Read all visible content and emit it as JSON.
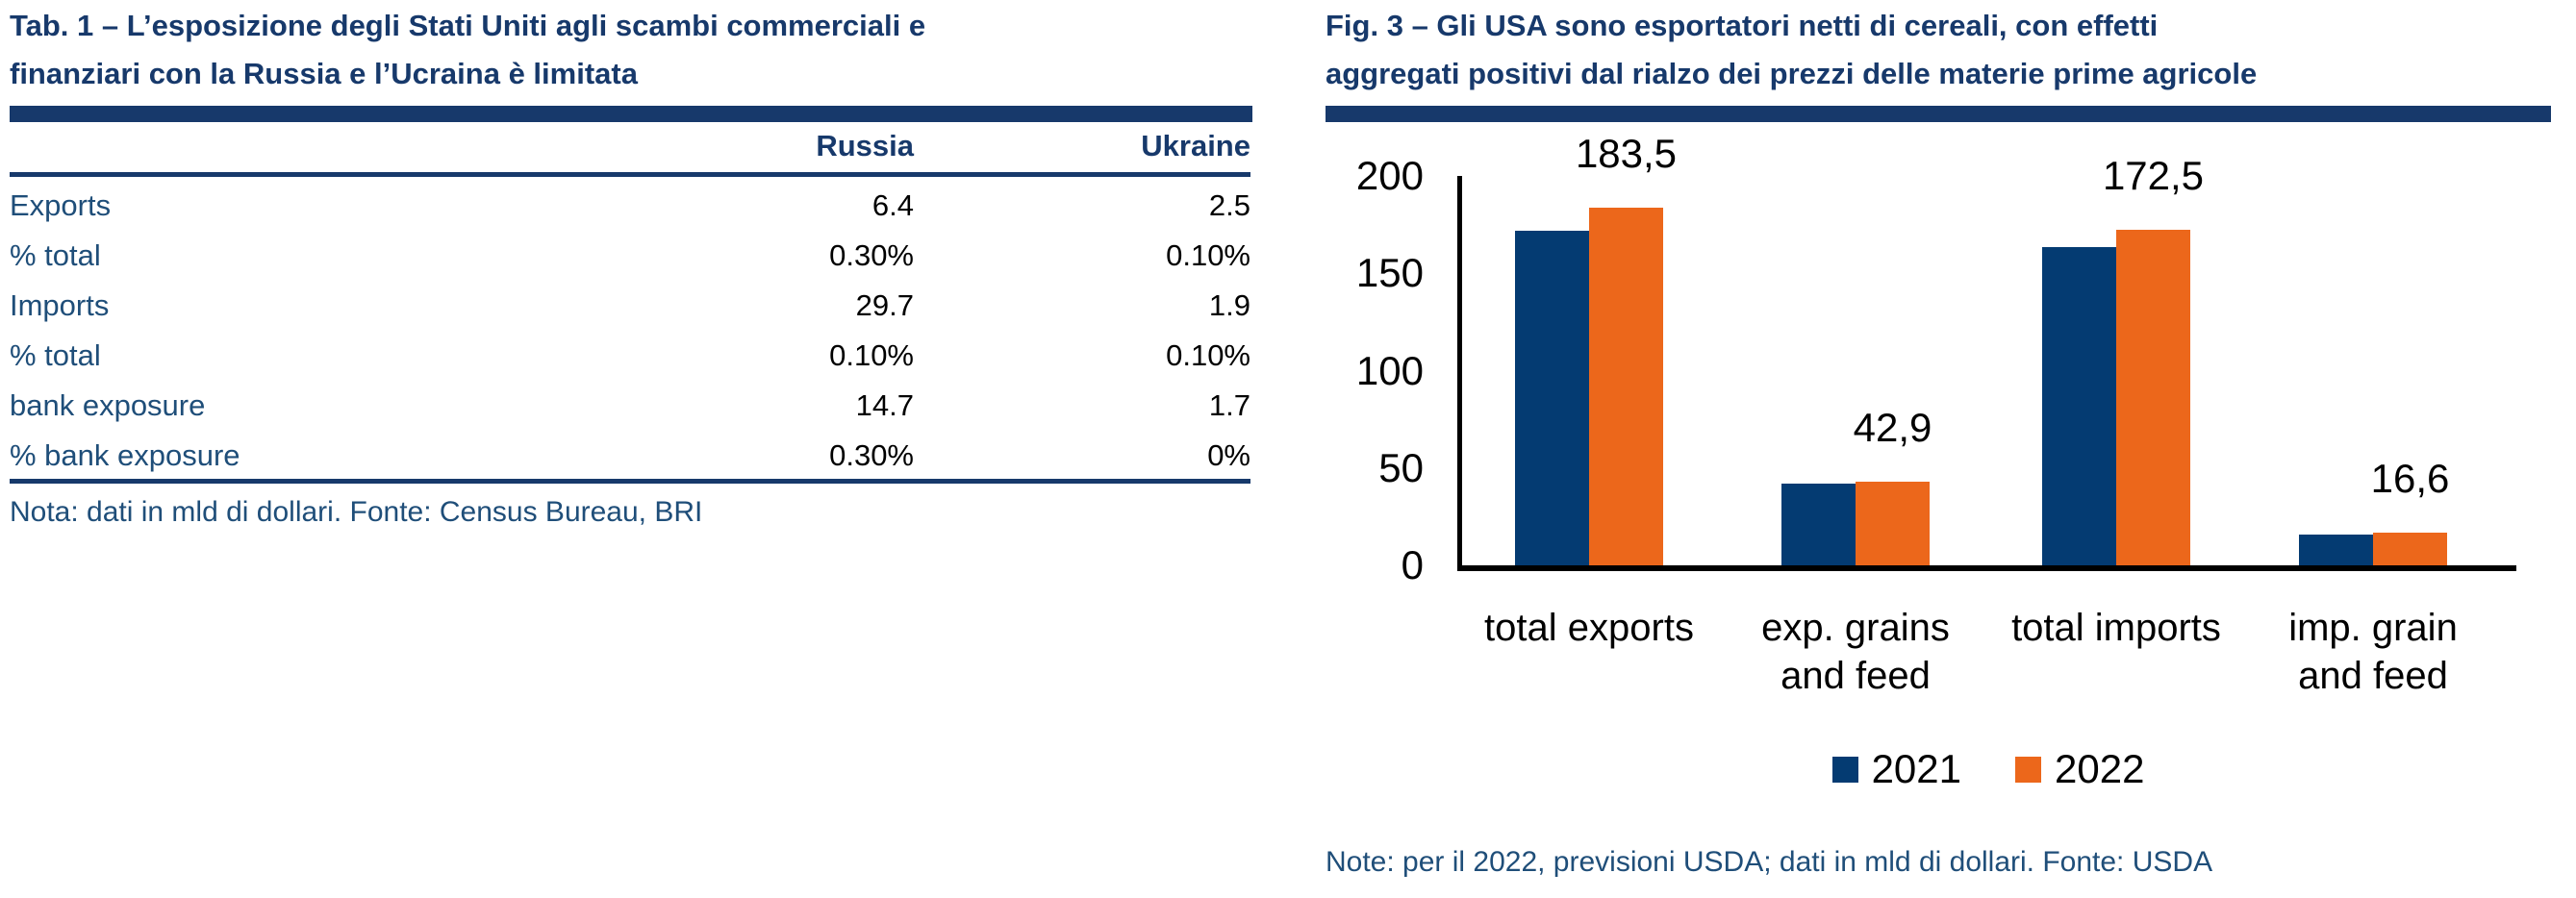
{
  "left_panel": {
    "title_lines": [
      "Tab. 1 – L’esposizione degli Stati Uniti agli scambi commerciali e",
      "finanziari con la Russia e l’Ucraina è limitata"
    ],
    "table": {
      "columns": [
        "Russia",
        "Ukraine"
      ],
      "rows": [
        {
          "label": "Exports",
          "russia": "6.4",
          "ukraine": "2.5"
        },
        {
          "label": "% total",
          "russia": "0.30%",
          "ukraine": "0.10%"
        },
        {
          "label": "Imports",
          "russia": "29.7",
          "ukraine": "1.9"
        },
        {
          "label": "% total",
          "russia": "0.10%",
          "ukraine": "0.10%"
        },
        {
          "label": "bank exposure",
          "russia": "14.7",
          "ukraine": "1.7"
        },
        {
          "label": "% bank exposure",
          "russia": "0.30%",
          "ukraine": "0%"
        }
      ],
      "note": "Nota: dati in mld di dollari. Fonte: Census Bureau, BRI"
    }
  },
  "right_panel": {
    "title_lines": [
      "Fig. 3 – Gli USA sono esportatori netti di cereali, con effetti",
      "aggregati positivi dal rialzo dei prezzi delle materie prime agricole"
    ],
    "note": "Note: per il 2022, previsioni USDA; dati in mld di dollari. Fonte: USDA"
  },
  "chart_data": {
    "type": "bar",
    "title": "Fig. 3 – Gli USA sono esportatori netti di cereali, con effetti aggregati positivi dal rialzo dei prezzi delle materie prime agricole",
    "categories": [
      "total exports",
      "exp. grains and feed",
      "total imports",
      "imp. grain and feed"
    ],
    "category_lines": [
      [
        "total exports"
      ],
      [
        "exp. grains",
        "and feed"
      ],
      [
        "total imports"
      ],
      [
        "imp. grain",
        "and feed"
      ]
    ],
    "series": [
      {
        "name": "2021",
        "color": "#043B72",
        "values": [
          172,
          42,
          163.5,
          15.8
        ]
      },
      {
        "name": "2022",
        "color": "#EC671B",
        "values": [
          183.5,
          42.9,
          172.5,
          16.6
        ]
      }
    ],
    "data_labels": [
      "183,5",
      "42,9",
      "172,5",
      "16,6"
    ],
    "xlabel": "",
    "ylabel": "",
    "ylim": [
      0,
      200
    ],
    "yticks": [
      0,
      50,
      100,
      150,
      200
    ],
    "grid": false,
    "legend_position": "bottom"
  },
  "colors": {
    "title_navy": "#17396B",
    "label_blue": "#1F4E79",
    "bar_blue": "#043B72",
    "bar_orange": "#EC671B"
  }
}
